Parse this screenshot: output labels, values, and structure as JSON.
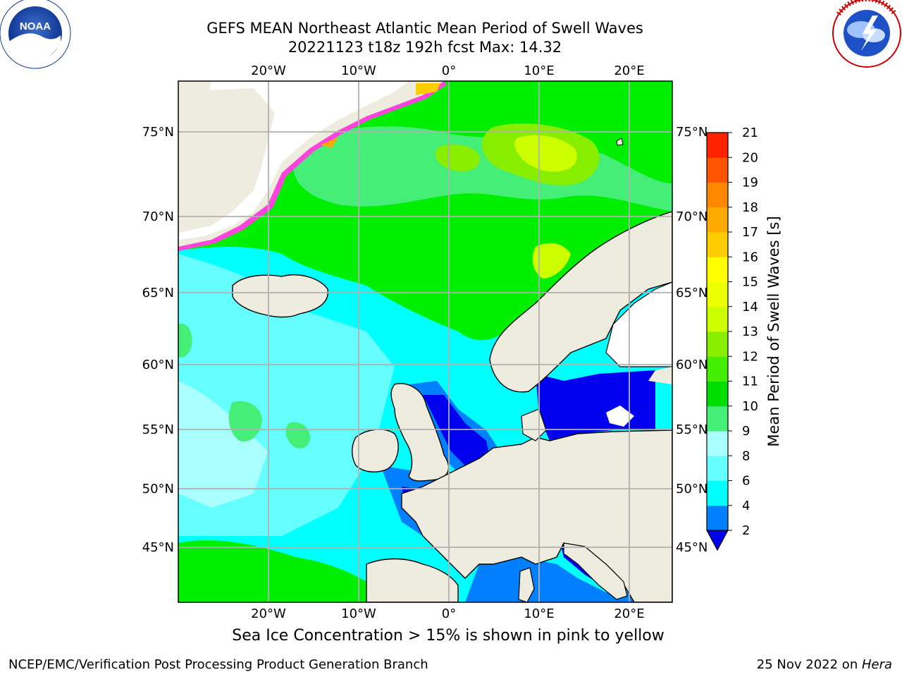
{
  "header": {
    "title_line1": "GEFS MEAN Northeast Atlantic Mean Period of Swell Waves",
    "title_line2": "20221123 t18z 192h fcst   Max: 14.32"
  },
  "logos": {
    "left": {
      "name": "noaa-logo",
      "text": "NOAA",
      "ring_text": "NATIONAL OCEANIC AND ATMOSPHERIC ADMINISTRATION • U.S. DEPARTMENT OF COMMERCE"
    },
    "right": {
      "name": "nws-logo",
      "ring_text": "NATIONAL WEATHER SERVICE"
    }
  },
  "map": {
    "top_lon_labels": [
      "20°W",
      "10°W",
      "0°",
      "10°E",
      "20°E"
    ],
    "bottom_lon_labels": [
      "20°W",
      "10°W",
      "0°",
      "10°E",
      "20°E"
    ],
    "left_lat_labels": [
      "75°N",
      "70°N",
      "65°N",
      "60°N",
      "55°N",
      "50°N",
      "45°N"
    ],
    "right_lat_labels": [
      "75°N",
      "70°N",
      "65°N",
      "60°N",
      "55°N",
      "50°N",
      "45°N"
    ],
    "colors": {
      "land": "#eeecdf",
      "ice_edge": "#ff44dd",
      "ocean_low": "#00ffff",
      "ocean_mid": "#00ee00",
      "sea_enclosed": "#0000ee"
    }
  },
  "colorbar": {
    "label": "Mean Period of Swell Waves [s]",
    "ticks": [
      "2",
      "4",
      "6",
      "8",
      "9",
      "10",
      "11",
      "12",
      "13",
      "14",
      "15",
      "16",
      "17",
      "18",
      "19",
      "20",
      "21"
    ],
    "colors": [
      "#0000ee",
      "#0080ff",
      "#00ffff",
      "#66ffff",
      "#aaffff",
      "#44ee77",
      "#00dd00",
      "#44ee00",
      "#88ee00",
      "#ccff00",
      "#eeff00",
      "#ffff00",
      "#ffcc00",
      "#ffaa00",
      "#ff8800",
      "#ff5500",
      "#ff2200",
      "#ff0000"
    ]
  },
  "note": "Sea Ice Concentration > 15% is shown in pink to yellow",
  "footer": {
    "left": "NCEP/EMC/Verification Post Processing Product Generation Branch",
    "right_prefix": "25 Nov 2022 on ",
    "right_machine": "Hera"
  }
}
